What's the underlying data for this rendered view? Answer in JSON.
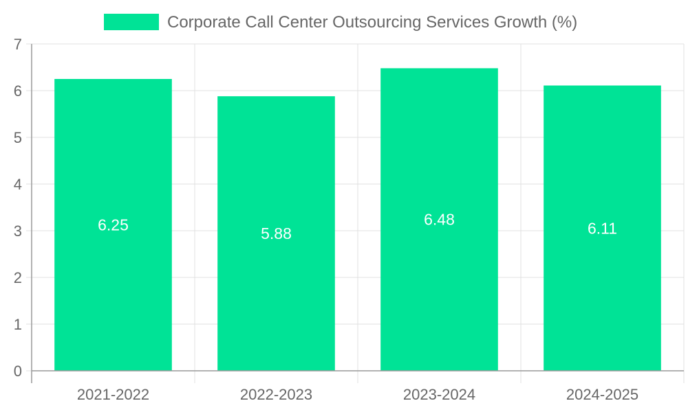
{
  "chart_data": {
    "type": "bar",
    "title": "",
    "xlabel": "",
    "ylabel": "",
    "categories": [
      "2021-2022",
      "2022-2023",
      "2023-2024",
      "2024-2025"
    ],
    "series": [
      {
        "name": "Corporate Call Center Outsourcing Services Growth (%)",
        "values": [
          6.25,
          5.88,
          6.48,
          6.11
        ]
      }
    ],
    "data_labels": [
      "6.25",
      "5.88",
      "6.48",
      "6.11"
    ],
    "ylim": [
      0,
      7
    ],
    "yticks": [
      "0",
      "1",
      "2",
      "3",
      "4",
      "5",
      "6",
      "7"
    ],
    "grid": true,
    "legend_position": "top-center",
    "colors": {
      "bar": "#00e396",
      "grid": "#e0e0e0",
      "axis": "#999999",
      "text": "#666666",
      "bar_label": "#ffffff"
    }
  }
}
